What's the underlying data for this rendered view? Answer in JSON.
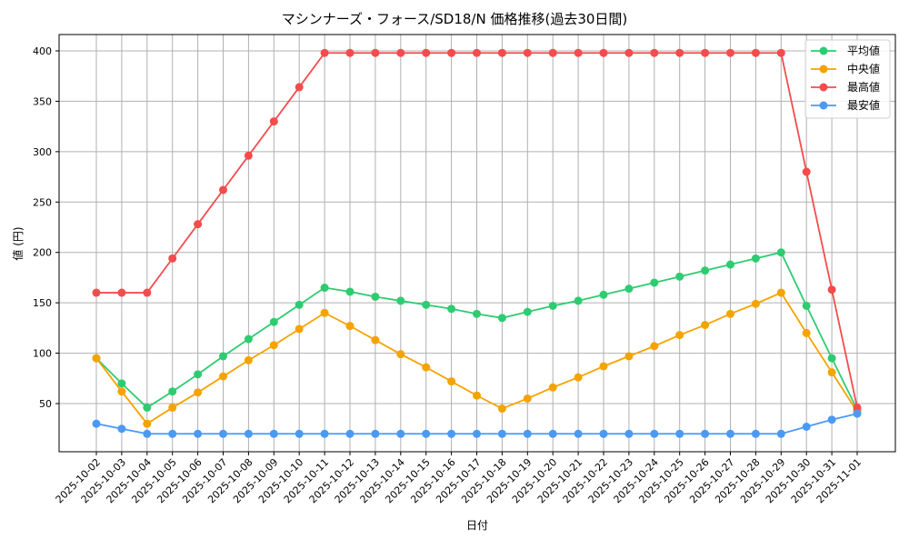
{
  "chart_data": {
    "type": "line",
    "title": "マシンナーズ・フォース/SD18/N 価格推移(過去30日間)",
    "xlabel": "日付",
    "ylabel": "値 (円)",
    "ylim": [
      2,
      416
    ],
    "yticks": [
      50,
      100,
      150,
      200,
      250,
      300,
      350,
      400
    ],
    "grid": true,
    "legend_position": "upper right",
    "x": [
      "2025-10-02",
      "2025-10-03",
      "2025-10-04",
      "2025-10-05",
      "2025-10-06",
      "2025-10-07",
      "2025-10-08",
      "2025-10-09",
      "2025-10-10",
      "2025-10-11",
      "2025-10-12",
      "2025-10-13",
      "2025-10-14",
      "2025-10-15",
      "2025-10-16",
      "2025-10-17",
      "2025-10-18",
      "2025-10-19",
      "2025-10-20",
      "2025-10-21",
      "2025-10-22",
      "2025-10-23",
      "2025-10-24",
      "2025-10-25",
      "2025-10-26",
      "2025-10-27",
      "2025-10-28",
      "2025-10-29",
      "2025-10-30",
      "2025-10-31",
      "2025-11-01"
    ],
    "series": [
      {
        "name": "平均値",
        "color": "#2ecc71",
        "values": [
          95,
          70,
          46,
          62,
          79,
          97,
          114,
          131,
          148,
          165,
          161,
          156,
          152,
          148,
          144,
          139,
          135,
          141,
          147,
          152,
          158,
          164,
          170,
          176,
          182,
          188,
          194,
          200,
          147,
          95,
          44
        ]
      },
      {
        "name": "中央値",
        "color": "#f5a300",
        "values": [
          95,
          62,
          30,
          46,
          61,
          77,
          93,
          108,
          124,
          140,
          127,
          113,
          99,
          86,
          72,
          58,
          45,
          55,
          66,
          76,
          87,
          97,
          107,
          118,
          128,
          139,
          149,
          160,
          120,
          81,
          42
        ]
      },
      {
        "name": "最高値",
        "color": "#f44c4c",
        "values": [
          160,
          160,
          160,
          194,
          228,
          262,
          296,
          330,
          364,
          398,
          398,
          398,
          398,
          398,
          398,
          398,
          398,
          398,
          398,
          398,
          398,
          398,
          398,
          398,
          398,
          398,
          398,
          398,
          280,
          163,
          46
        ]
      },
      {
        "name": "最安値",
        "color": "#4a9af5",
        "values": [
          30,
          25,
          20,
          20,
          20,
          20,
          20,
          20,
          20,
          20,
          20,
          20,
          20,
          20,
          20,
          20,
          20,
          20,
          20,
          20,
          20,
          20,
          20,
          20,
          20,
          20,
          20,
          20,
          27,
          34,
          40
        ]
      }
    ]
  }
}
